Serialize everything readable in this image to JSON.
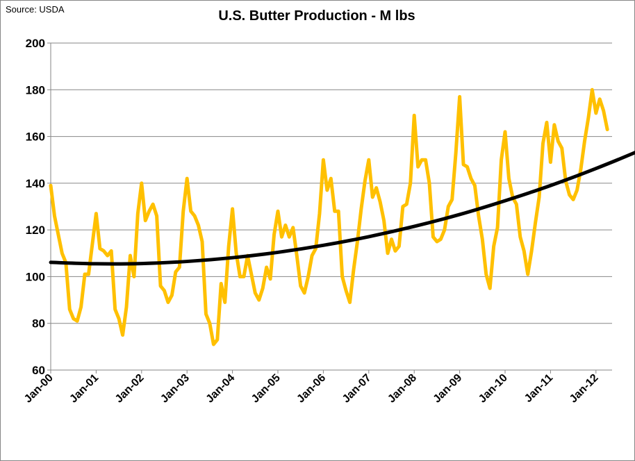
{
  "source_label": "Source: USDA",
  "chart_data": {
    "type": "line",
    "title": "U.S. Butter Production - M lbs",
    "xlabel": "",
    "ylabel": "",
    "ylim": [
      60,
      200
    ],
    "yticks": [
      60,
      80,
      100,
      120,
      140,
      160,
      180,
      200
    ],
    "xtick_labels": [
      "Jan-00",
      "Jan-01",
      "Jan-02",
      "Jan-03",
      "Jan-04",
      "Jan-05",
      "Jan-06",
      "Jan-07",
      "Jan-08",
      "Jan-09",
      "Jan-10",
      "Jan-11",
      "Jan-12"
    ],
    "x_start": "Jan-00",
    "x_frequency": "monthly",
    "grid": "horizontal",
    "legend": "none",
    "series": [
      {
        "color": "#FFC000",
        "values": [
          139,
          126,
          118,
          110,
          106,
          86,
          82,
          81,
          87,
          101,
          101,
          114,
          127,
          112,
          111,
          109,
          111,
          86,
          82,
          75,
          87,
          109,
          100,
          127,
          140,
          124,
          128,
          131,
          126,
          96,
          94,
          89,
          92,
          102,
          104,
          128,
          142,
          128,
          126,
          122,
          115,
          84,
          80,
          71,
          73,
          97,
          89,
          113,
          129,
          110,
          100,
          100,
          109,
          101,
          93,
          90,
          95,
          104,
          99,
          118,
          128,
          117,
          122,
          117,
          121,
          109,
          96,
          93,
          100,
          109,
          112,
          127,
          150,
          137,
          142,
          128,
          128,
          100,
          94,
          89,
          103,
          115,
          129,
          141,
          150,
          134,
          138,
          132,
          124,
          110,
          116,
          111,
          113,
          130,
          131,
          140,
          169,
          147,
          150,
          150,
          140,
          117,
          115,
          116,
          120,
          130,
          133,
          153,
          177,
          148,
          147,
          142,
          139,
          126,
          116,
          101,
          95,
          113,
          121,
          150,
          162,
          142,
          134,
          131,
          117,
          111,
          101,
          111,
          123,
          134,
          157,
          166,
          149,
          165,
          158,
          155,
          141,
          135,
          133,
          137,
          146,
          158,
          168,
          180,
          170,
          176,
          171,
          163
        ]
      },
      {
        "color": "#000000",
        "values": [
          106.1,
          105.5,
          105.6,
          106.5,
          108.1,
          110.4,
          113.4,
          117.1,
          121.5,
          126.6,
          132.5,
          139.0,
          146.3,
          154.3,
          158.3
        ]
      }
    ],
    "trend_x_months": [
      0,
      12,
      24,
      36,
      48,
      60,
      72,
      84,
      96,
      108,
      120,
      132,
      144,
      156,
      161
    ]
  }
}
